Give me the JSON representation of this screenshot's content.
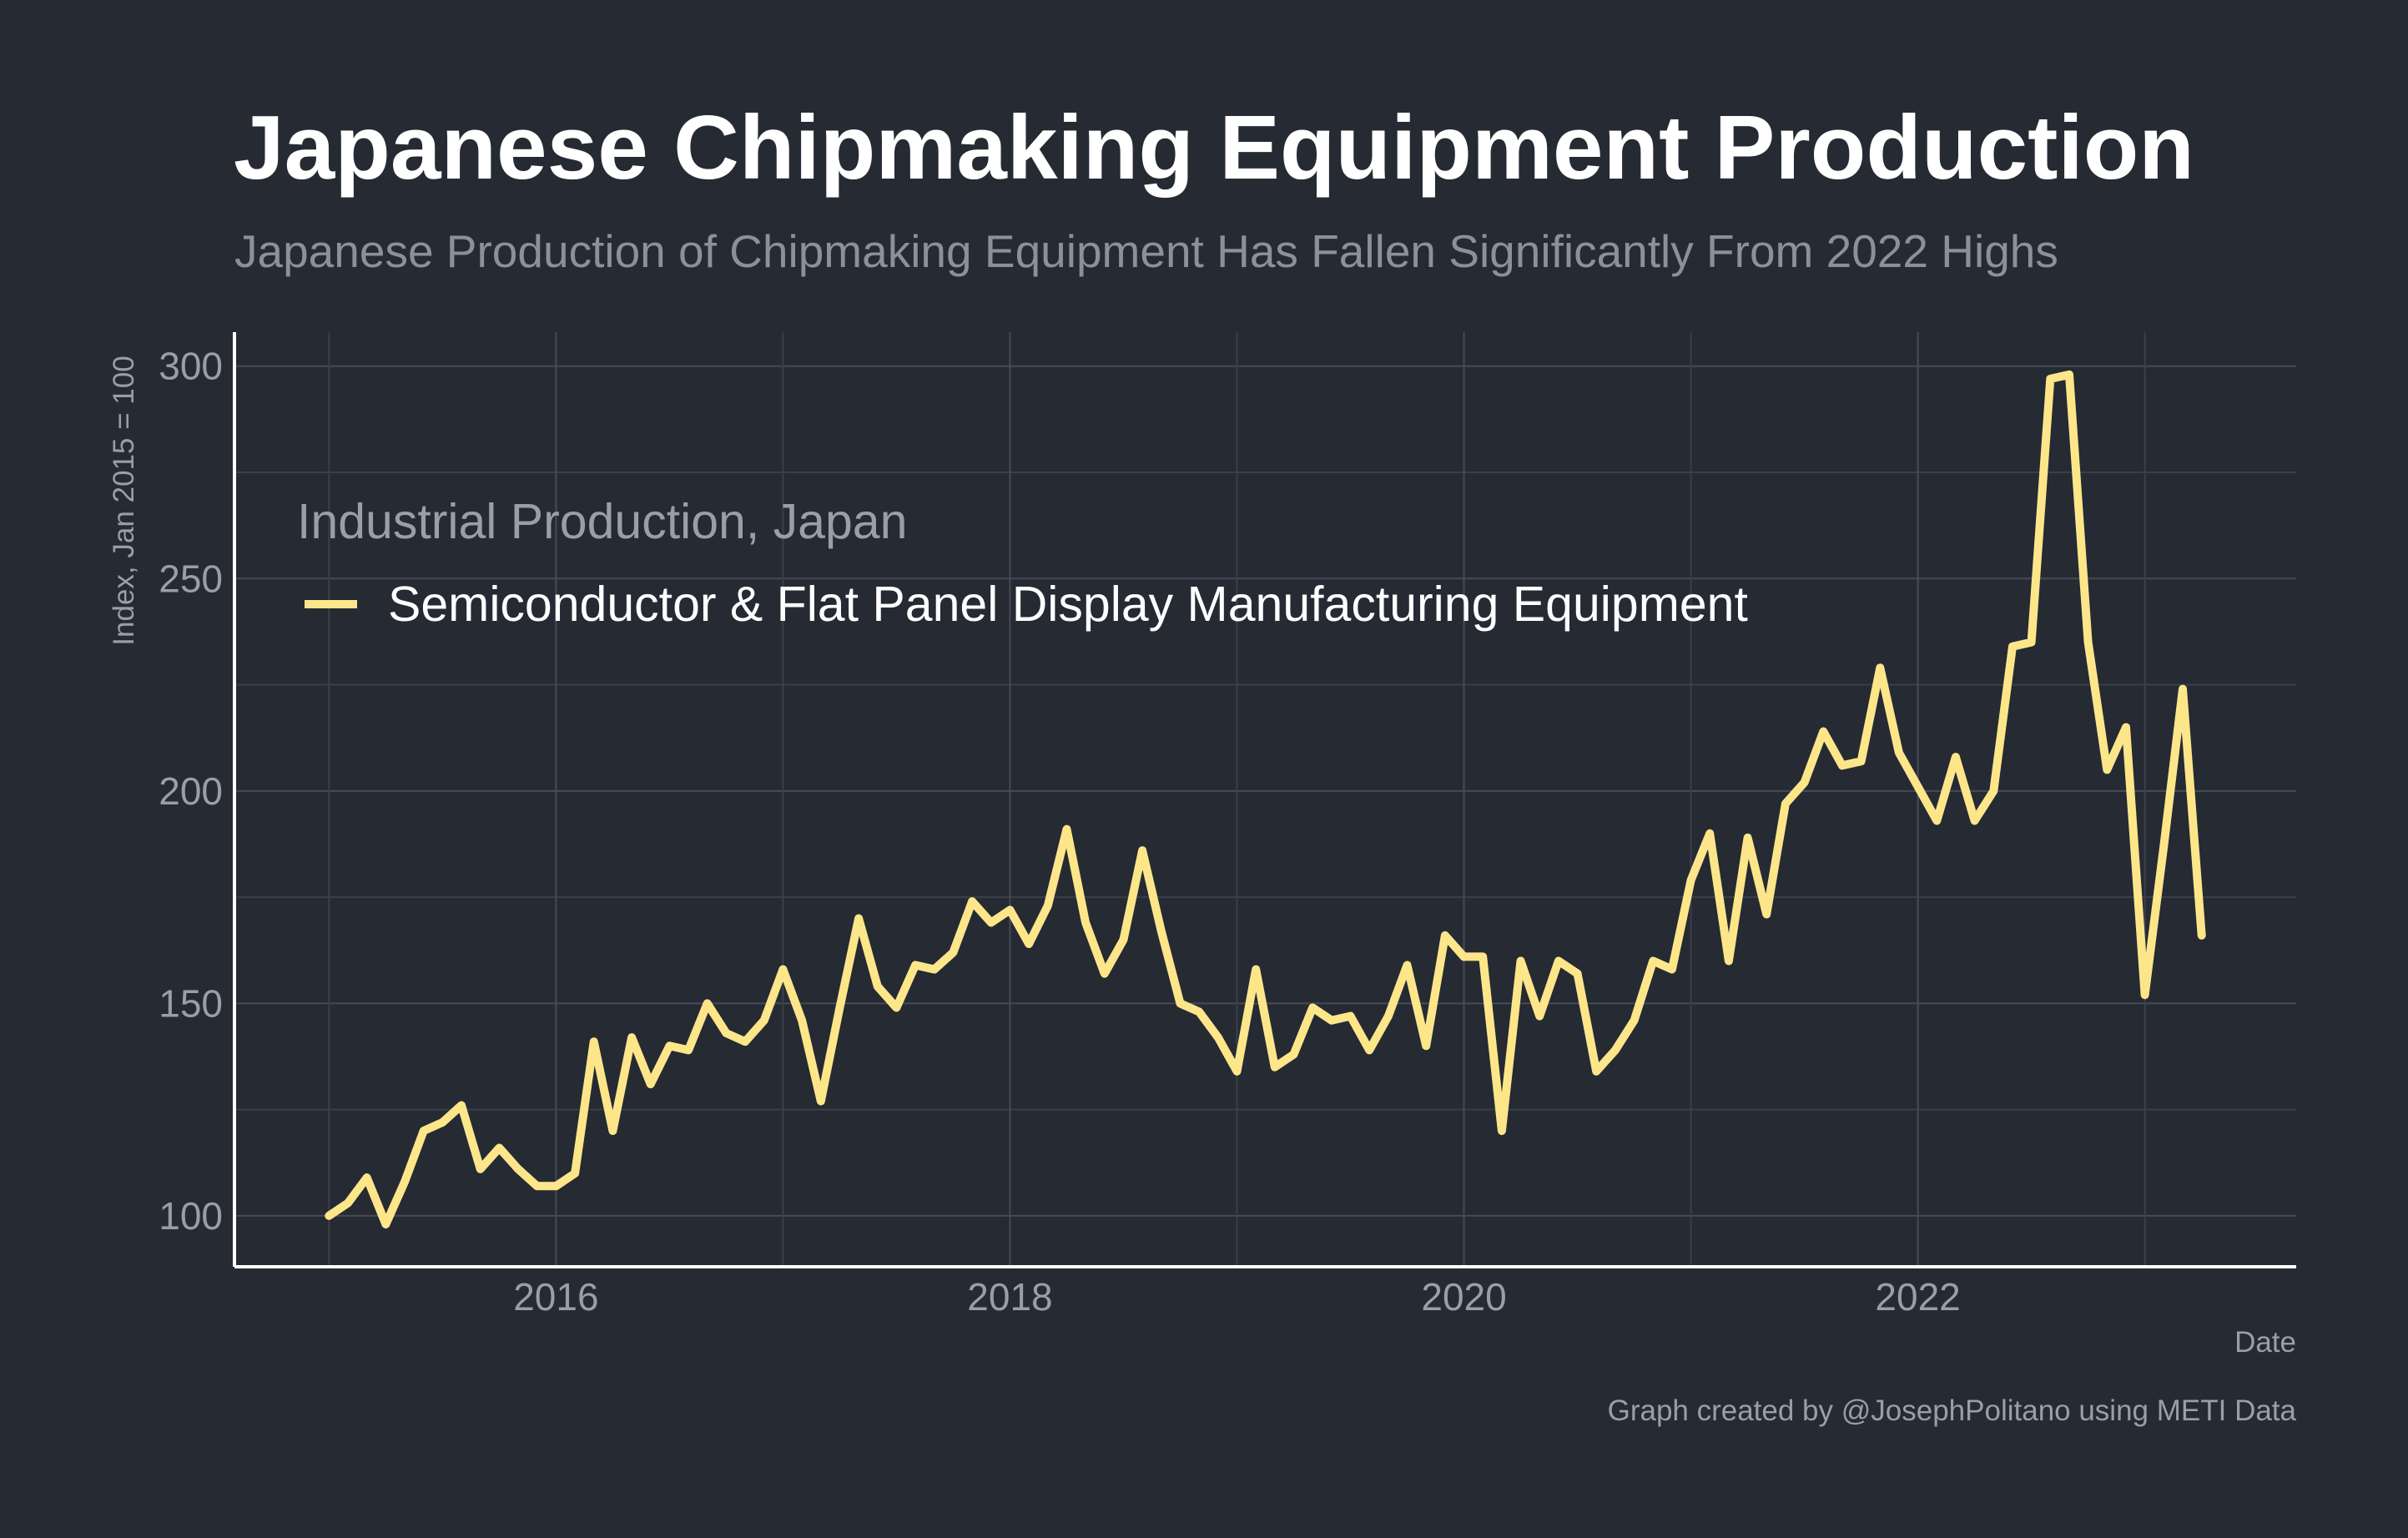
{
  "title": "Japanese Chipmaking Equipment Production",
  "subtitle": "Japanese Production of Chipmaking Equipment Has Fallen Significantly From 2022 Highs",
  "caption": "Graph created by @JosephPolitano using METI Data",
  "colors": {
    "background": "#252a33",
    "series": "#fde68a",
    "text": "#ffffff",
    "muted": "#9a9ea6"
  },
  "chart_data": {
    "type": "line",
    "title": "Japanese Chipmaking Equipment Production",
    "subtitle": "Japanese Production of Chipmaking Equipment Has Fallen Significantly From 2022 Highs",
    "xlabel": "Date",
    "ylabel": "Index, Jan 2015 = 100",
    "x_ticks": [
      "2016",
      "2018",
      "2020",
      "2022"
    ],
    "y_ticks": [
      "100",
      "150",
      "200",
      "250",
      "300"
    ],
    "xlim": [
      "2014-08",
      "2023-09"
    ],
    "ylim": [
      88,
      308
    ],
    "grid": true,
    "legend": {
      "title": "Industrial Production, Japan",
      "position": "top-left",
      "entries": [
        "Semiconductor & Flat Panel Display Manufacturing Equipment"
      ]
    },
    "series": [
      {
        "name": "Semiconductor & Flat Panel Display Manufacturing Equipment",
        "color": "#fde68a",
        "start": "2015-01",
        "frequency": "monthly",
        "values": [
          100,
          103,
          109,
          98,
          108,
          120,
          122,
          126,
          111,
          116,
          111,
          107,
          107,
          110,
          141,
          120,
          142,
          131,
          140,
          139,
          150,
          143,
          141,
          146,
          158,
          146,
          127,
          149,
          170,
          154,
          149,
          159,
          158,
          162,
          174,
          169,
          172,
          164,
          173,
          191,
          169,
          157,
          165,
          186,
          167,
          150,
          148,
          142,
          134,
          158,
          135,
          138,
          149,
          146,
          147,
          139,
          147,
          159,
          140,
          166,
          161,
          161,
          120,
          160,
          147,
          160,
          157,
          134,
          139,
          146,
          160,
          158,
          179,
          190,
          160,
          189,
          171,
          197,
          202,
          214,
          206,
          207,
          229,
          209,
          201,
          193,
          208,
          193,
          200,
          234,
          235,
          297,
          298,
          235,
          205,
          215,
          152,
          187,
          224,
          166
        ]
      }
    ]
  }
}
